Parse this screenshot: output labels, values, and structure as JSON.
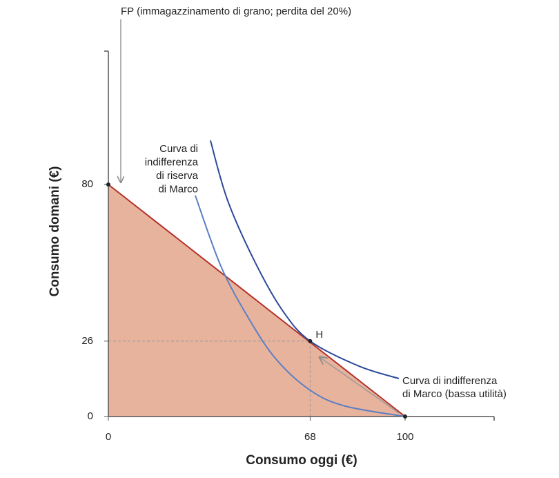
{
  "chart_data": {
    "type": "line",
    "xlabel": "Consumo oggi (€)",
    "ylabel": "Consumo domani (€)",
    "xlim": [
      0,
      130
    ],
    "ylim": [
      0,
      126
    ],
    "xticks": [
      0,
      68,
      100
    ],
    "yticks": [
      0,
      26,
      80
    ],
    "series": [
      {
        "name": [
          "FP (immagazzinamento di grano; perdita del 20%)"
        ],
        "color": "#b3322a",
        "fill": "#e8b39d",
        "x": [
          0,
          100
        ],
        "values": [
          80,
          0
        ]
      },
      {
        "name": [
          "Curva di indifferenza",
          "di Marco (bassa utilità)"
        ],
        "color": "#2c4a9a",
        "x": [
          34.4,
          40.2,
          49.5,
          58.8,
          68,
          84.4,
          97.9
        ],
        "values": [
          95.2,
          74.5,
          53.1,
          36.4,
          26,
          17.4,
          13.1
        ]
      },
      {
        "name": [
          "Curva di",
          "indifferenza",
          "di riserva",
          "di Marco"
        ],
        "color": "#5b7fc4",
        "x": [
          29.3,
          37.9,
          47.2,
          56.5,
          68.1,
          79.8,
          100
        ],
        "values": [
          76.2,
          51.9,
          34,
          19.8,
          9,
          3.6,
          0
        ]
      }
    ],
    "points": [
      {
        "label": "H",
        "x": 68,
        "y": 26
      },
      {
        "x": 0,
        "y": 80
      },
      {
        "x": 100,
        "y": 0
      }
    ]
  }
}
